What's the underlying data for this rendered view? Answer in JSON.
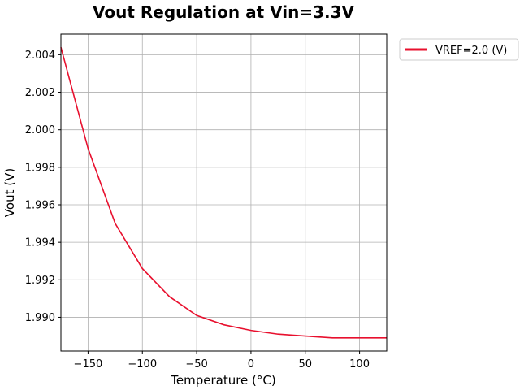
{
  "chart_data": {
    "type": "line",
    "title": "Vout Regulation at Vin=3.3V",
    "xlabel": "Temperature (°C)",
    "ylabel": "Vout (V)",
    "xlim": [
      -175,
      125
    ],
    "ylim": [
      1.9882,
      2.0051
    ],
    "xticks": [
      -150,
      -100,
      -50,
      0,
      50,
      100
    ],
    "xtick_labels": [
      "−150",
      "−100",
      "−50",
      "0",
      "50",
      "100"
    ],
    "yticks": [
      1.99,
      1.992,
      1.994,
      1.996,
      1.998,
      2.0,
      2.002,
      2.004
    ],
    "ytick_labels": [
      "1.990",
      "1.992",
      "1.994",
      "1.996",
      "1.998",
      "2.000",
      "2.002",
      "2.004"
    ],
    "grid": true,
    "legend_position": "outside-top-right",
    "series": [
      {
        "name": "VREF=2.0 (V)",
        "color": "#e8102e",
        "x": [
          -175,
          -150,
          -125,
          -100,
          -75,
          -50,
          -25,
          0,
          25,
          50,
          75,
          100,
          125
        ],
        "y": [
          2.0044,
          1.999,
          1.995,
          1.9926,
          1.9911,
          1.9901,
          1.9896,
          1.9893,
          1.9891,
          1.989,
          1.9889,
          1.9889,
          1.9889
        ]
      }
    ]
  }
}
